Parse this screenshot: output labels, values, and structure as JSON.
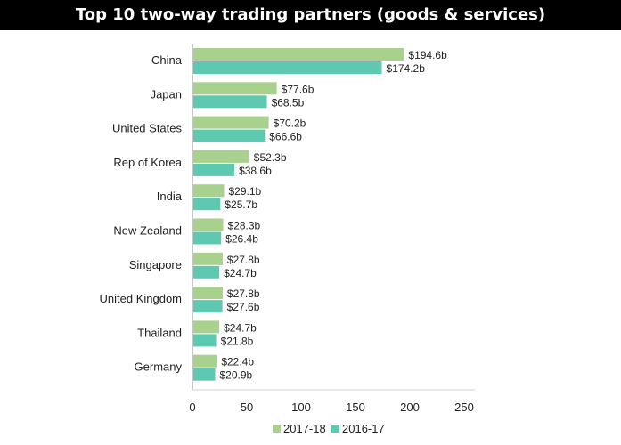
{
  "chart_data": {
    "type": "bar",
    "orientation": "horizontal",
    "title": "Top 10 two-way trading partners (goods & services)",
    "categories": [
      "China",
      "Japan",
      "United States",
      "Rep of Korea",
      "India",
      "New Zealand",
      "Singapore",
      "United Kingdom",
      "Thailand",
      "Germany"
    ],
    "series": [
      {
        "name": "2017-18",
        "color": "#a9d18e",
        "values": [
          194.6,
          77.6,
          70.2,
          52.3,
          29.1,
          28.3,
          27.8,
          27.8,
          24.7,
          22.4
        ],
        "labels": [
          "$194.6b",
          "$77.6b",
          "$70.2b",
          "$52.3b",
          "$29.1b",
          "$28.3b",
          "$27.8b",
          "$27.8b",
          "$24.7b",
          "$22.4b"
        ]
      },
      {
        "name": "2016-17",
        "color": "#5fc8b0",
        "values": [
          174.2,
          68.5,
          66.6,
          38.6,
          25.7,
          26.4,
          24.7,
          27.6,
          21.8,
          20.9
        ],
        "labels": [
          "$174.2b",
          "$68.5b",
          "$66.6b",
          "$38.6b",
          "$25.7b",
          "$26.4b",
          "$24.7b",
          "$27.6b",
          "$21.8b",
          "$20.9b"
        ]
      }
    ],
    "xlim": [
      0,
      250
    ],
    "xticks": [
      0,
      50,
      100,
      150,
      200,
      250
    ],
    "xtick_labels": [
      "0",
      "50",
      "100",
      "150",
      "200",
      "250"
    ],
    "grid": false,
    "legend": "bottom-center"
  }
}
